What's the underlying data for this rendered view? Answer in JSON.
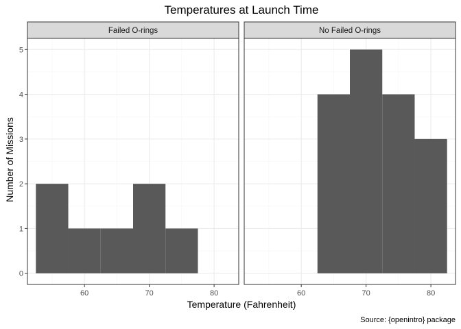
{
  "chart_data": {
    "type": "bar",
    "title": "Temperatures at Launch Time",
    "xlabel": "Temperature (Fahrenheit)",
    "ylabel": "Number of Missions",
    "caption": "Source: {openintro} package",
    "xlim": [
      51.2,
      83.8
    ],
    "ylim": [
      -0.25,
      5.25
    ],
    "x_ticks": [
      60,
      70,
      80
    ],
    "x_minor_ticks": [
      55,
      65,
      75
    ],
    "y_ticks": [
      0,
      1,
      2,
      3,
      4,
      5
    ],
    "bin_width": 5,
    "grid": true,
    "panels": [
      {
        "name": "Failed O-rings",
        "bins": [
          {
            "x_start": 52.5,
            "x_end": 57.5,
            "count": 2
          },
          {
            "x_start": 57.5,
            "x_end": 62.5,
            "count": 1
          },
          {
            "x_start": 62.5,
            "x_end": 67.5,
            "count": 1
          },
          {
            "x_start": 67.5,
            "x_end": 72.5,
            "count": 2
          },
          {
            "x_start": 72.5,
            "x_end": 77.5,
            "count": 1
          }
        ]
      },
      {
        "name": "No Failed O-rings",
        "bins": [
          {
            "x_start": 62.5,
            "x_end": 67.5,
            "count": 4
          },
          {
            "x_start": 67.5,
            "x_end": 72.5,
            "count": 5
          },
          {
            "x_start": 72.5,
            "x_end": 77.5,
            "count": 4
          },
          {
            "x_start": 77.5,
            "x_end": 82.5,
            "count": 3
          }
        ]
      }
    ]
  },
  "colors": {
    "bar_fill": "#595959",
    "panel_border": "#333333",
    "strip_fill": "#d9d9d9",
    "grid_major": "#ebebeb",
    "grid_minor": "#f5f5f5",
    "background": "#ffffff"
  }
}
